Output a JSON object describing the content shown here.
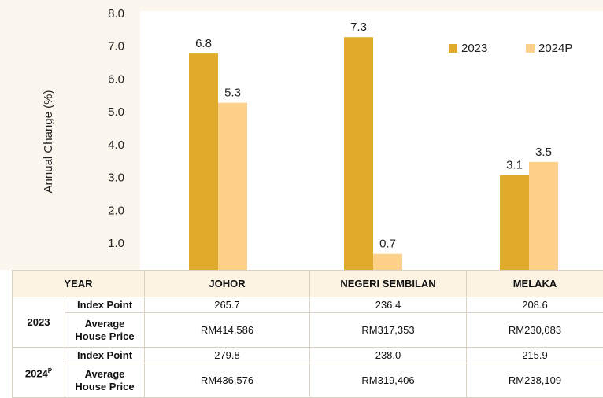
{
  "chart_data": {
    "type": "bar",
    "ylabel": "Annual Change (%)",
    "categories": [
      "JOHOR",
      "NEGERI SEMBILAN",
      "MELAKA"
    ],
    "series": [
      {
        "name": "2023",
        "color": "#e0aa2a",
        "values": [
          6.8,
          7.3,
          3.1
        ]
      },
      {
        "name": "2024P",
        "color": "#fdd18a",
        "values": [
          5.3,
          0.7,
          3.5
        ]
      }
    ],
    "ylim": [
      0,
      8
    ],
    "yticks": [
      {
        "value": 1,
        "label": "1.0"
      },
      {
        "value": 2,
        "label": "2.0"
      },
      {
        "value": 3,
        "label": "3.0"
      },
      {
        "value": 4,
        "label": "4.0"
      },
      {
        "value": 5,
        "label": "5.0"
      },
      {
        "value": 6,
        "label": "6.0"
      },
      {
        "value": 7,
        "label": "7.0"
      },
      {
        "value": 8,
        "label": "8.0"
      }
    ],
    "grid": false,
    "legend": "top-right"
  },
  "table": {
    "header": "YEAR",
    "groups": [
      {
        "year": "2023",
        "rows": [
          {
            "label": "Index Point",
            "values": [
              "265.7",
              "236.4",
              "208.6"
            ]
          },
          {
            "label": "Average House Price",
            "values": [
              "RM414,586",
              "RM317,353",
              "RM230,083"
            ]
          }
        ]
      },
      {
        "year": "2024",
        "sup": "P",
        "rows": [
          {
            "label": "Index Point",
            "values": [
              "279.8",
              "238.0",
              "215.9"
            ]
          },
          {
            "label": "Average House Price",
            "values": [
              "RM436,576",
              "RM319,406",
              "RM238,109"
            ]
          }
        ]
      }
    ]
  }
}
